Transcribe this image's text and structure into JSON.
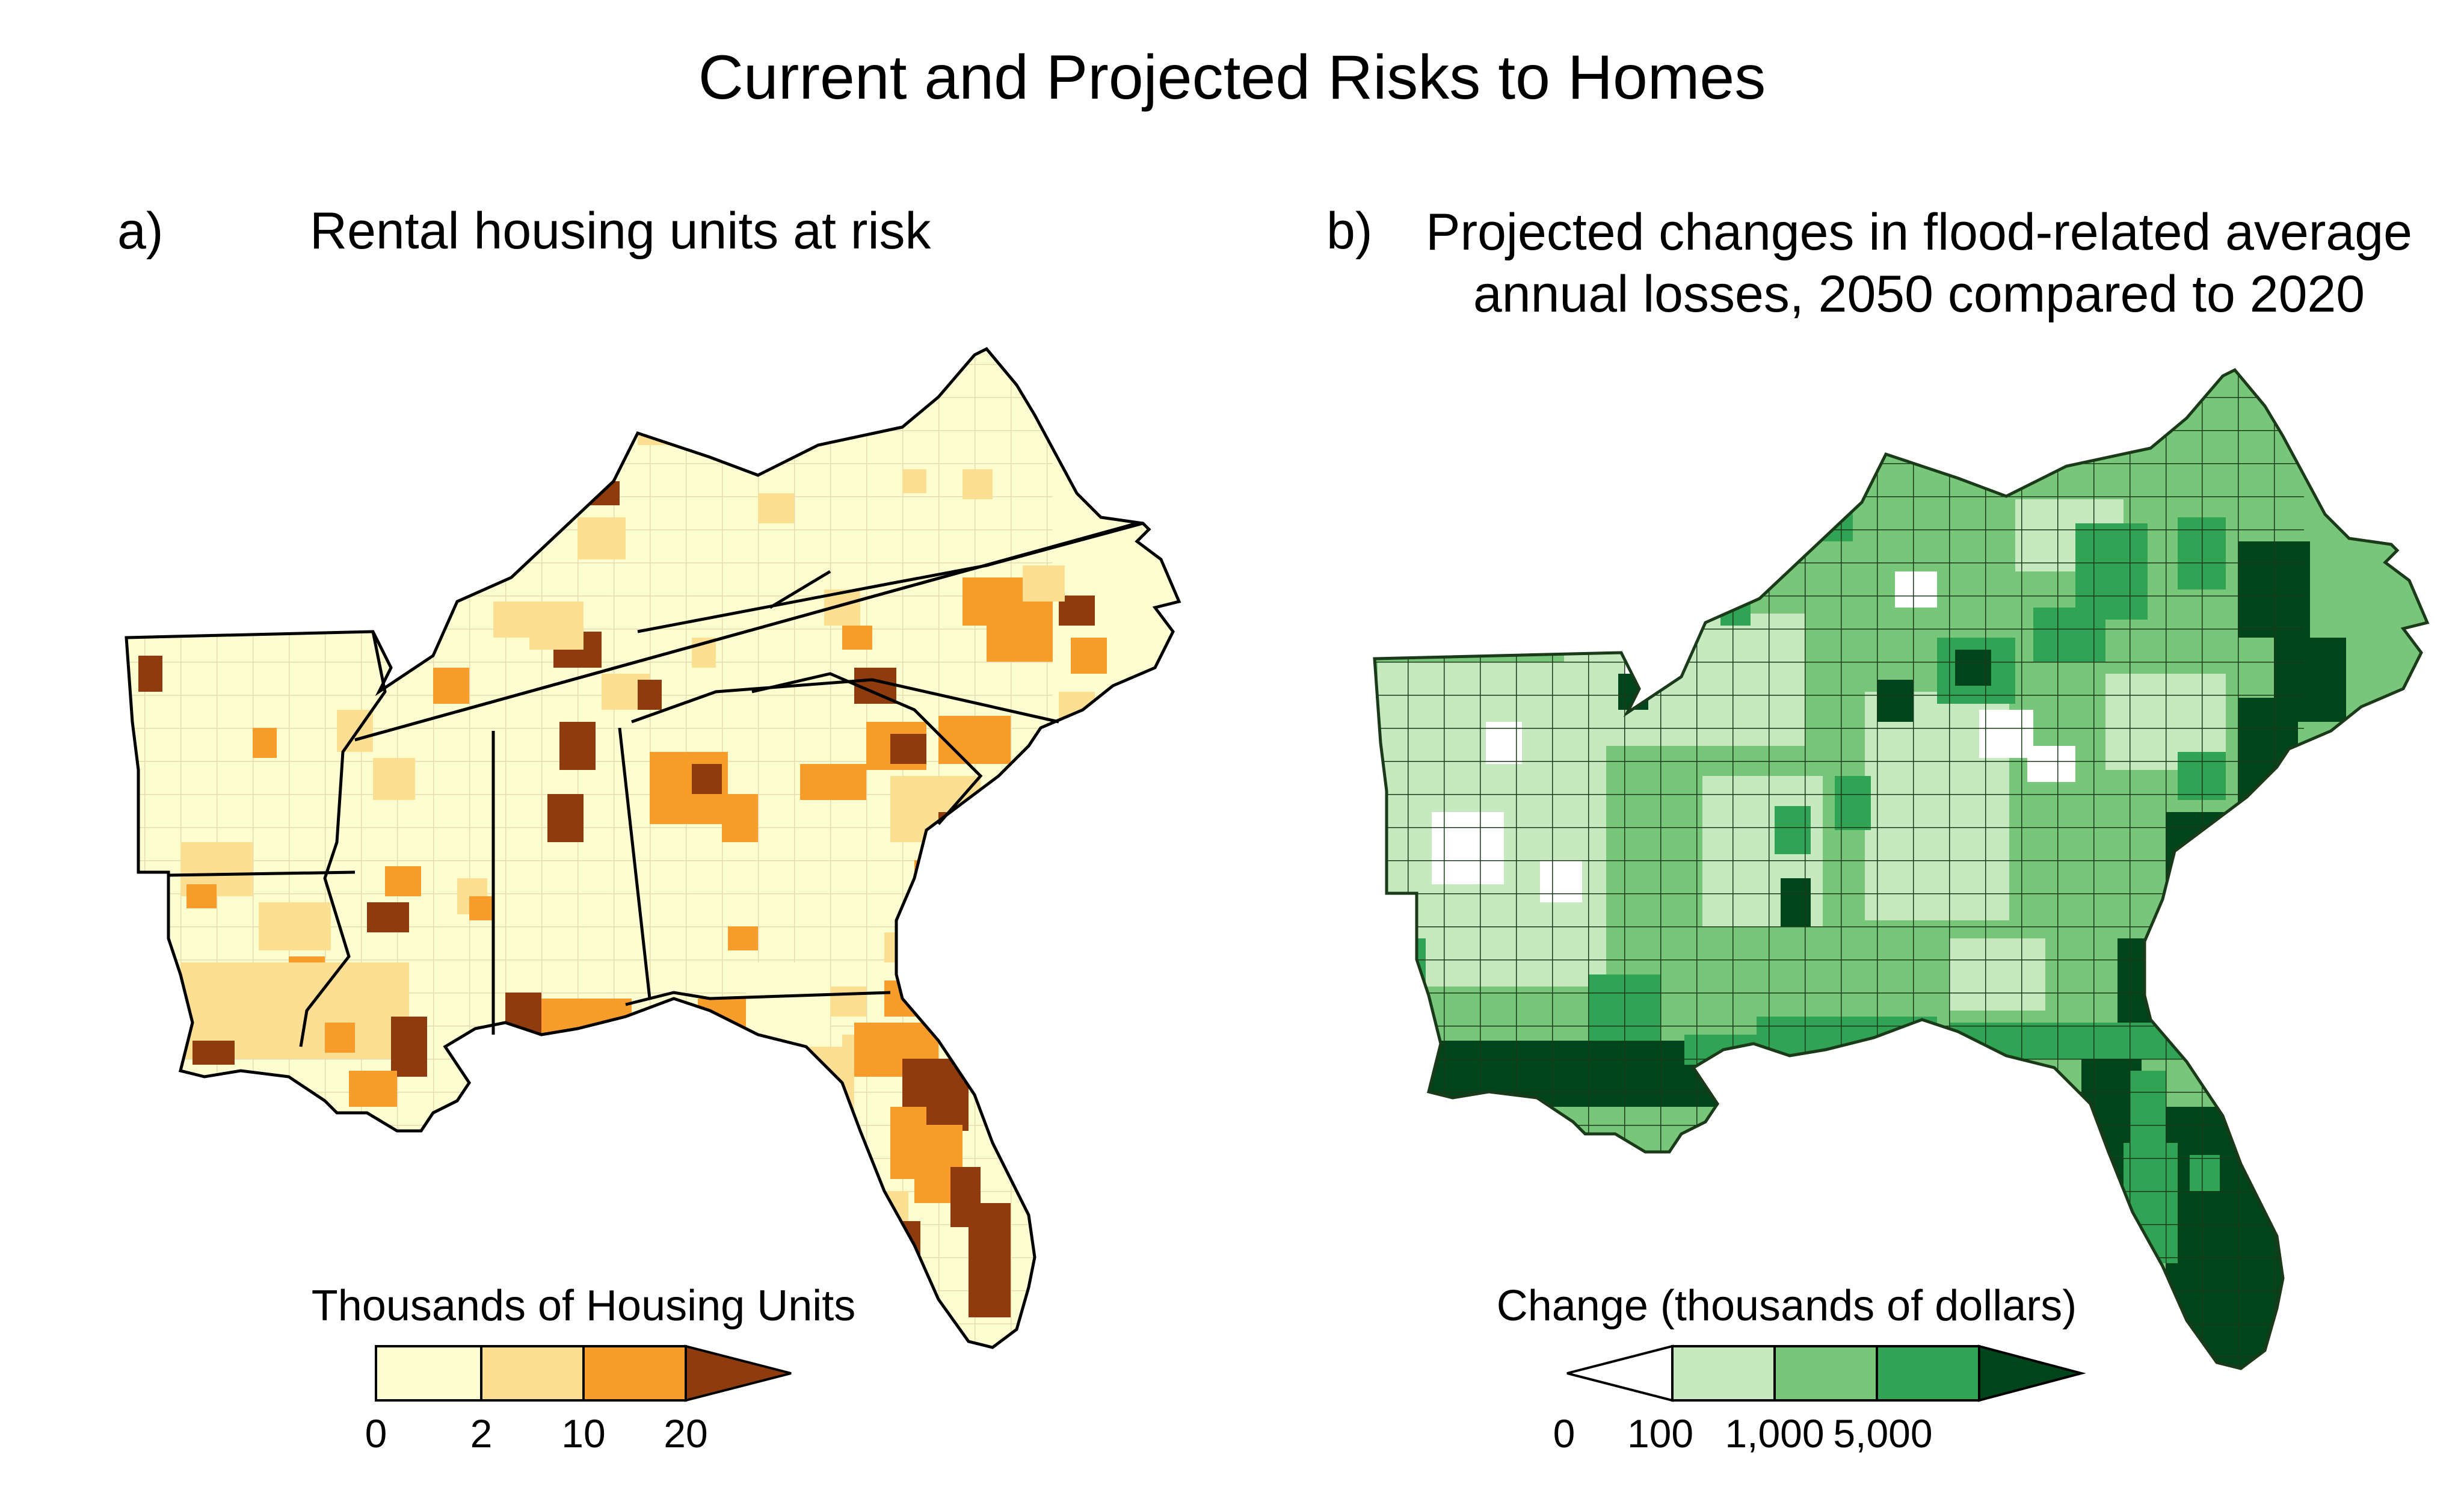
{
  "title": "Current and Projected Risks to Homes",
  "panel_a": {
    "label": "a)",
    "title": "Rental housing units at risk",
    "legend": {
      "title": "Thousands of Housing Units",
      "ticks": [
        "0",
        "2",
        "10",
        "20"
      ],
      "colors": [
        "#fdfdd2",
        "#fddf94",
        "#f99d2a",
        "#8e3b0d"
      ]
    }
  },
  "panel_b": {
    "label": "b)",
    "title_line1": "Projected changes in flood-related average",
    "title_line2": "annual losses, 2050 compared to 2020",
    "legend": {
      "title": "Change (thousands of dollars)",
      "ticks": [
        "0",
        "100",
        "1,000",
        "5,000"
      ],
      "colors": [
        "#ffffff",
        "#c7e9c0",
        "#78c679",
        "#31a354",
        "#00441b"
      ]
    }
  }
}
